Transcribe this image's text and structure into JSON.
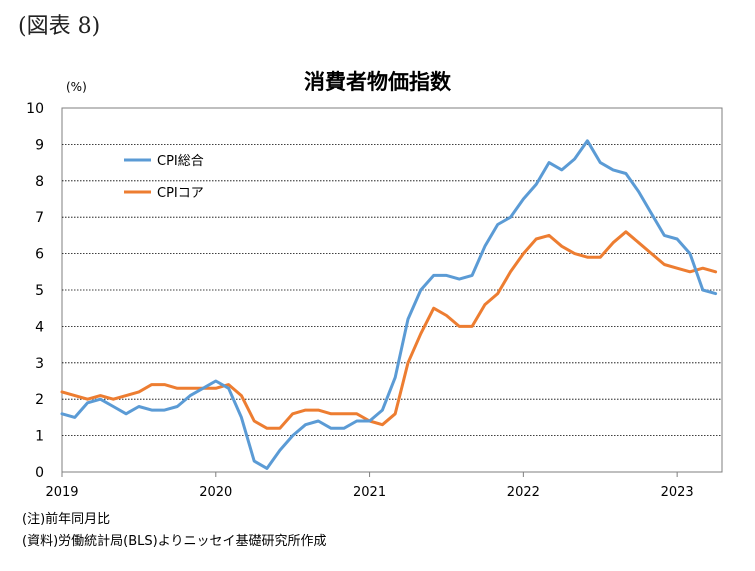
{
  "figure_label": "(図表 8)",
  "notes": [
    "(注)前年同月比",
    "(資料)労働統計局(BLS)よりニッセイ基礎研究所作成"
  ],
  "chart_data": {
    "type": "line",
    "title": "消費者物価指数",
    "ylabel": "(%)",
    "xlabel": "",
    "ylim": [
      0,
      10
    ],
    "yticks": [
      0,
      1,
      2,
      3,
      4,
      5,
      6,
      7,
      8,
      9,
      10
    ],
    "xticks": [
      "2019",
      "2020",
      "2021",
      "2022",
      "2023"
    ],
    "x": [
      "2019-01",
      "2019-02",
      "2019-03",
      "2019-04",
      "2019-05",
      "2019-06",
      "2019-07",
      "2019-08",
      "2019-09",
      "2019-10",
      "2019-11",
      "2019-12",
      "2020-01",
      "2020-02",
      "2020-03",
      "2020-04",
      "2020-05",
      "2020-06",
      "2020-07",
      "2020-08",
      "2020-09",
      "2020-10",
      "2020-11",
      "2020-12",
      "2021-01",
      "2021-02",
      "2021-03",
      "2021-04",
      "2021-05",
      "2021-06",
      "2021-07",
      "2021-08",
      "2021-09",
      "2021-10",
      "2021-11",
      "2021-12",
      "2022-01",
      "2022-02",
      "2022-03",
      "2022-04",
      "2022-05",
      "2022-06",
      "2022-07",
      "2022-08",
      "2022-09",
      "2022-10",
      "2022-11",
      "2022-12",
      "2023-01",
      "2023-02",
      "2023-03",
      "2023-04"
    ],
    "grid": true,
    "legend_position": "top-left",
    "series": [
      {
        "name": "CPI総合",
        "color": "#5b9bd5",
        "values": [
          1.6,
          1.5,
          1.9,
          2.0,
          1.8,
          1.6,
          1.8,
          1.7,
          1.7,
          1.8,
          2.1,
          2.3,
          2.5,
          2.3,
          1.5,
          0.3,
          0.1,
          0.6,
          1.0,
          1.3,
          1.4,
          1.2,
          1.2,
          1.4,
          1.4,
          1.7,
          2.6,
          4.2,
          5.0,
          5.4,
          5.4,
          5.3,
          5.4,
          6.2,
          6.8,
          7.0,
          7.5,
          7.9,
          8.5,
          8.3,
          8.6,
          9.1,
          8.5,
          8.3,
          8.2,
          7.7,
          7.1,
          6.5,
          6.4,
          6.0,
          5.0,
          4.9
        ]
      },
      {
        "name": "CPIコア",
        "color": "#ed7d31",
        "values": [
          2.2,
          2.1,
          2.0,
          2.1,
          2.0,
          2.1,
          2.2,
          2.4,
          2.4,
          2.3,
          2.3,
          2.3,
          2.3,
          2.4,
          2.1,
          1.4,
          1.2,
          1.2,
          1.6,
          1.7,
          1.7,
          1.6,
          1.6,
          1.6,
          1.4,
          1.3,
          1.6,
          3.0,
          3.8,
          4.5,
          4.3,
          4.0,
          4.0,
          4.6,
          4.9,
          5.5,
          6.0,
          6.4,
          6.5,
          6.2,
          6.0,
          5.9,
          5.9,
          6.3,
          6.6,
          6.3,
          6.0,
          5.7,
          5.6,
          5.5,
          5.6,
          5.5
        ]
      }
    ]
  }
}
